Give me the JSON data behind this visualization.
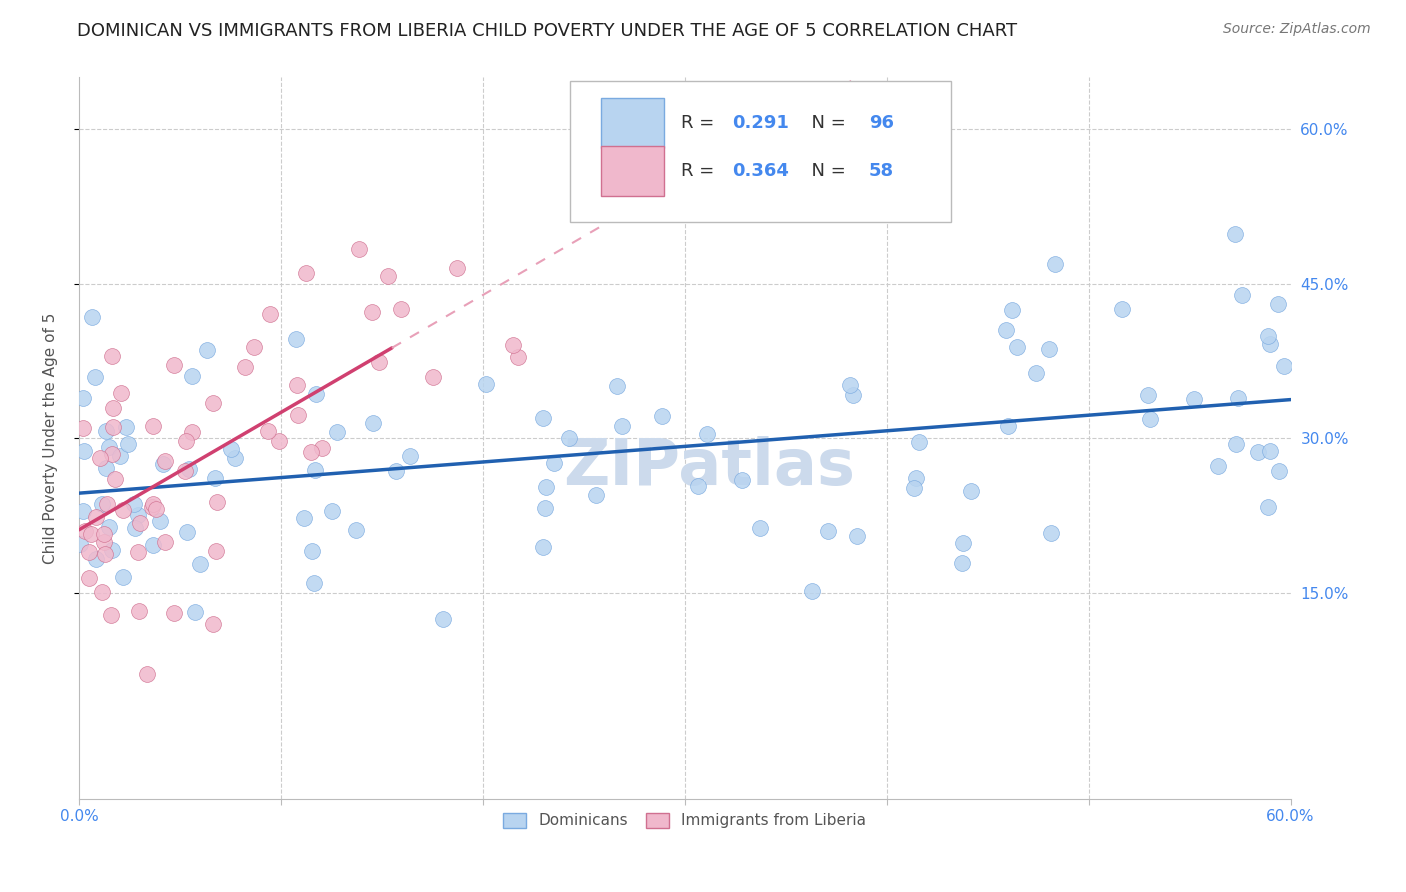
{
  "title": "DOMINICAN VS IMMIGRANTS FROM LIBERIA CHILD POVERTY UNDER THE AGE OF 5 CORRELATION CHART",
  "source": "Source: ZipAtlas.com",
  "ylabel": "Child Poverty Under the Age of 5",
  "xmin": 0.0,
  "xmax": 0.6,
  "ymin": -0.05,
  "ymax": 0.65,
  "yticks": [
    0.15,
    0.3,
    0.45,
    0.6
  ],
  "ytick_labels": [
    "15.0%",
    "30.0%",
    "45.0%",
    "60.0%"
  ],
  "xtick_labels": [
    "0.0%",
    "60.0%"
  ],
  "xtick_positions": [
    0.0,
    0.6
  ],
  "group1_label": "Dominicans",
  "group1_color": "#b8d4f0",
  "group1_edge_color": "#7aaae0",
  "group1_R": 0.291,
  "group1_N": 96,
  "group1_line_color": "#2060b0",
  "group2_label": "Immigrants from Liberia",
  "group2_color": "#f0b8cc",
  "group2_edge_color": "#d07090",
  "group2_R": 0.364,
  "group2_N": 58,
  "group2_line_color": "#d04070",
  "group2_dash_color": "#e8a0b8",
  "watermark": "ZIPatlas",
  "watermark_color": "#ccdaec",
  "background_color": "#ffffff",
  "grid_color": "#cccccc",
  "axis_color": "#4488ee",
  "title_color": "#222222",
  "title_fontsize": 13,
  "source_fontsize": 10,
  "legend_text_color": "#4488ee"
}
